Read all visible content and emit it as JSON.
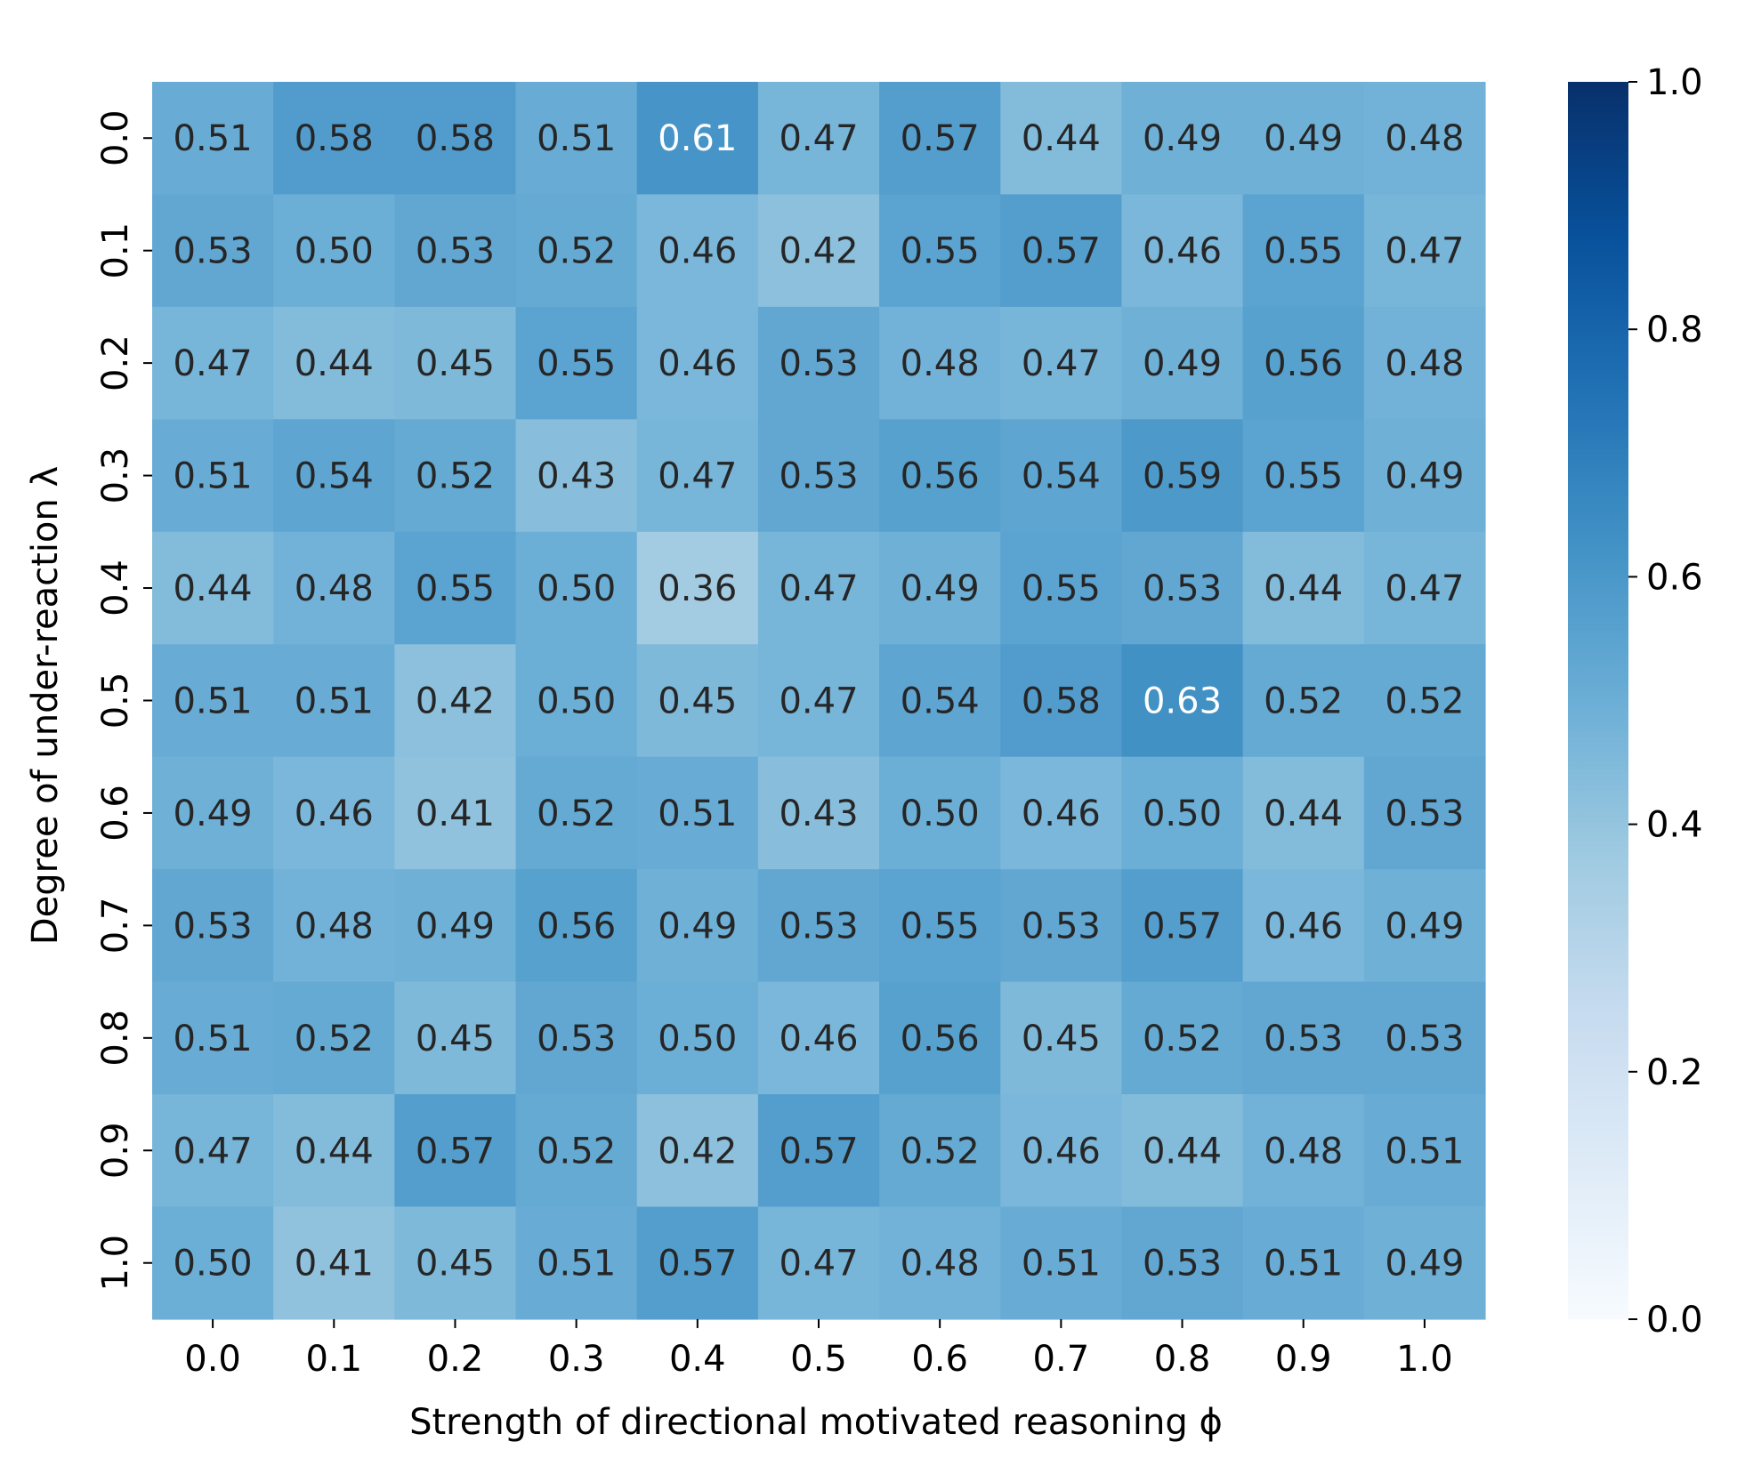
{
  "chart_data": {
    "type": "heatmap",
    "title": "",
    "xlabel": "Strength of directional motivated reasoning ϕ",
    "ylabel": "Degree of under-reaction λ",
    "x_categories": [
      "0.0",
      "0.1",
      "0.2",
      "0.3",
      "0.4",
      "0.5",
      "0.6",
      "0.7",
      "0.8",
      "0.9",
      "1.0"
    ],
    "y_categories": [
      "0.0",
      "0.1",
      "0.2",
      "0.3",
      "0.4",
      "0.5",
      "0.6",
      "0.7",
      "0.8",
      "0.9",
      "1.0"
    ],
    "values": [
      [
        0.51,
        0.58,
        0.58,
        0.51,
        0.61,
        0.47,
        0.57,
        0.44,
        0.49,
        0.49,
        0.48
      ],
      [
        0.53,
        0.5,
        0.53,
        0.52,
        0.46,
        0.42,
        0.55,
        0.57,
        0.46,
        0.55,
        0.47
      ],
      [
        0.47,
        0.44,
        0.45,
        0.55,
        0.46,
        0.53,
        0.48,
        0.47,
        0.49,
        0.56,
        0.48
      ],
      [
        0.51,
        0.54,
        0.52,
        0.43,
        0.47,
        0.53,
        0.56,
        0.54,
        0.59,
        0.55,
        0.49
      ],
      [
        0.44,
        0.48,
        0.55,
        0.5,
        0.36,
        0.47,
        0.49,
        0.55,
        0.53,
        0.44,
        0.47
      ],
      [
        0.51,
        0.51,
        0.42,
        0.5,
        0.45,
        0.47,
        0.54,
        0.58,
        0.63,
        0.52,
        0.52
      ],
      [
        0.49,
        0.46,
        0.41,
        0.52,
        0.51,
        0.43,
        0.5,
        0.46,
        0.5,
        0.44,
        0.53
      ],
      [
        0.53,
        0.48,
        0.49,
        0.56,
        0.49,
        0.53,
        0.55,
        0.53,
        0.57,
        0.46,
        0.49
      ],
      [
        0.51,
        0.52,
        0.45,
        0.53,
        0.5,
        0.46,
        0.56,
        0.45,
        0.52,
        0.53,
        0.53
      ],
      [
        0.47,
        0.44,
        0.57,
        0.52,
        0.42,
        0.57,
        0.52,
        0.46,
        0.44,
        0.48,
        0.51
      ],
      [
        0.5,
        0.41,
        0.45,
        0.51,
        0.57,
        0.47,
        0.48,
        0.51,
        0.53,
        0.51,
        0.49
      ]
    ],
    "value_range": [
      0.0,
      1.0
    ],
    "colormap": "Blues",
    "colorbar_ticks": [
      "0.0",
      "0.2",
      "0.4",
      "0.6",
      "0.8",
      "1.0"
    ],
    "colorbar_tick_values": [
      0.0,
      0.2,
      0.4,
      0.6,
      0.8,
      1.0
    ],
    "colors": {
      "stops": [
        "#f7fbff",
        "#deebf7",
        "#c6dbef",
        "#9ecae1",
        "#6baed6",
        "#4292c6",
        "#2171b5",
        "#08519c",
        "#08306b"
      ],
      "text_dark": "#262626",
      "text_light": "#ffffff",
      "axis": "#000000"
    }
  }
}
